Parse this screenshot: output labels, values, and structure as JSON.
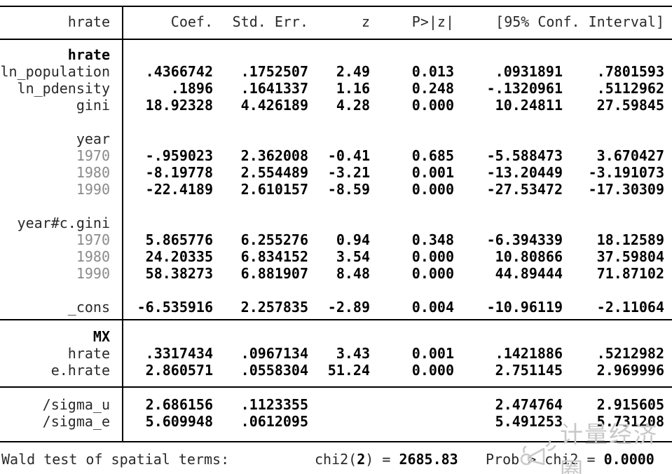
{
  "table": {
    "header": {
      "label": "hrate",
      "cols": [
        "Coef.",
        "Std. Err.",
        "z",
        "P>|z|",
        "[95% Conf. Interval]"
      ]
    },
    "sections": [
      {
        "rows": [
          {
            "label": "hrate",
            "style": "section-head",
            "cells": [
              "",
              "",
              "",
              "",
              "",
              ""
            ]
          },
          {
            "label": "ln_population",
            "style": "",
            "cells": [
              ".4366742",
              ".1752507",
              "2.49",
              "0.013",
              ".0931891",
              ".7801593"
            ]
          },
          {
            "label": "ln_pdensity",
            "style": "",
            "cells": [
              ".1896",
              ".1641337",
              "1.16",
              "0.248",
              "-.1320961",
              ".5112962"
            ]
          },
          {
            "label": "gini",
            "style": "",
            "cells": [
              "18.92328",
              "4.426189",
              "4.28",
              "0.000",
              "10.24811",
              "27.59845"
            ]
          },
          {
            "label": "",
            "style": "",
            "cells": [
              "",
              "",
              "",
              "",
              "",
              ""
            ]
          },
          {
            "label": "year",
            "style": "group",
            "cells": [
              "",
              "",
              "",
              "",
              "",
              ""
            ]
          },
          {
            "label": "1970",
            "style": "level",
            "cells": [
              "-.959023",
              "2.362008",
              "-0.41",
              "0.685",
              "-5.588473",
              "3.670427"
            ]
          },
          {
            "label": "1980",
            "style": "level",
            "cells": [
              "-8.19778",
              "2.554489",
              "-3.21",
              "0.001",
              "-13.20449",
              "-3.191073"
            ]
          },
          {
            "label": "1990",
            "style": "level",
            "cells": [
              "-22.4189",
              "2.610157",
              "-8.59",
              "0.000",
              "-27.53472",
              "-17.30309"
            ]
          },
          {
            "label": "",
            "style": "",
            "cells": [
              "",
              "",
              "",
              "",
              "",
              ""
            ]
          },
          {
            "label": "year#c.gini",
            "style": "group",
            "cells": [
              "",
              "",
              "",
              "",
              "",
              ""
            ]
          },
          {
            "label": "1970",
            "style": "level",
            "cells": [
              "5.865776",
              "6.255276",
              "0.94",
              "0.348",
              "-6.394339",
              "18.12589"
            ]
          },
          {
            "label": "1980",
            "style": "level",
            "cells": [
              "24.20335",
              "6.834152",
              "3.54",
              "0.000",
              "10.80866",
              "37.59804"
            ]
          },
          {
            "label": "1990",
            "style": "level",
            "cells": [
              "58.38273",
              "6.881907",
              "8.48",
              "0.000",
              "44.89444",
              "71.87102"
            ]
          },
          {
            "label": "",
            "style": "",
            "cells": [
              "",
              "",
              "",
              "",
              "",
              ""
            ]
          },
          {
            "label": "_cons",
            "style": "",
            "cells": [
              "-6.535916",
              "2.257835",
              "-2.89",
              "0.004",
              "-10.96119",
              "-2.11064"
            ]
          }
        ]
      },
      {
        "rows": [
          {
            "label": "MX",
            "style": "section-head",
            "cells": [
              "",
              "",
              "",
              "",
              "",
              ""
            ]
          },
          {
            "label": "hrate",
            "style": "",
            "cells": [
              ".3317434",
              ".0967134",
              "3.43",
              "0.001",
              ".1421886",
              ".5212982"
            ]
          },
          {
            "label": "e.hrate",
            "style": "",
            "cells": [
              "2.860571",
              ".0558304",
              "51.24",
              "0.000",
              "2.751145",
              "2.969996"
            ]
          }
        ]
      },
      {
        "rows": [
          {
            "label": "/sigma_u",
            "style": "",
            "cells": [
              "2.686156",
              ".1123355",
              "",
              "",
              "2.474764",
              "2.915605"
            ]
          },
          {
            "label": "/sigma_e",
            "style": "",
            "cells": [
              "5.609948",
              ".0612095",
              "",
              "",
              "5.491253",
              "5.731208"
            ]
          }
        ]
      }
    ]
  },
  "footer": {
    "wald_label": "Wald test of spatial terms:",
    "chi2_prefix": "chi2(",
    "chi2_df": "2",
    "chi2_mid": ") = ",
    "chi2_value": "2685.83",
    "prob_prefix": "Prob > chi2 = ",
    "prob_value": "0.0000"
  },
  "watermark": {
    "text": "计量经济圈",
    "icon": "megaphone-icon"
  },
  "colors": {
    "rule": "#000000",
    "header_text": "#2a2a2a",
    "label_text": "#2a2a2a",
    "factor_level_text": "#8a8a8a",
    "value_text": "#000000",
    "watermark": "#c8c8c8"
  }
}
